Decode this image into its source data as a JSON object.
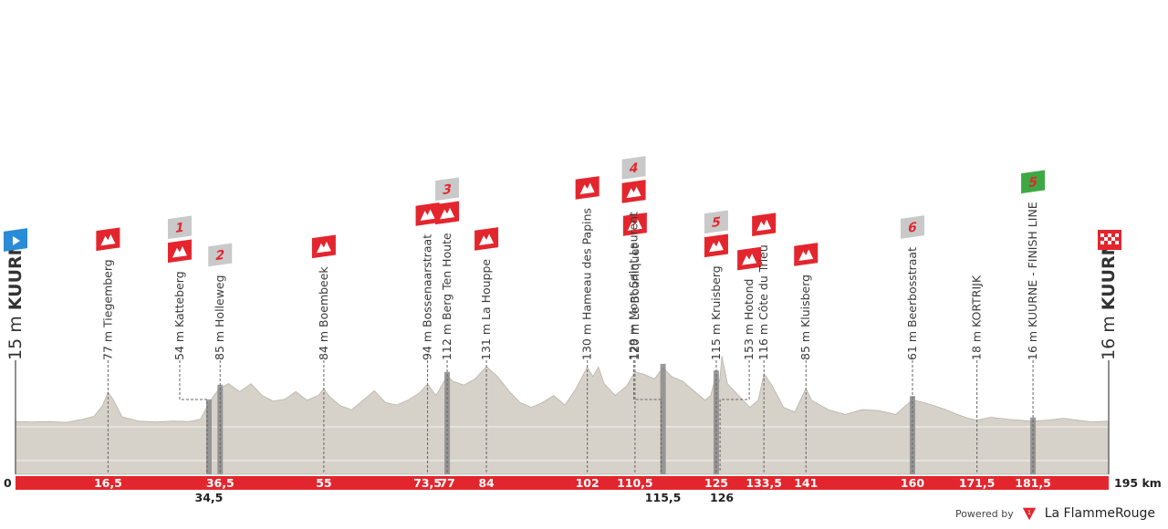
{
  "chart_data": {
    "type": "area",
    "total_km_label": "195 km",
    "xlim": [
      0,
      195
    ],
    "start": {
      "km_label": "0",
      "label": "15 m KUURNE",
      "alt_m": 15
    },
    "finish": {
      "km_label": "195 km",
      "label": "16 m KUURNE",
      "alt_m": 16
    },
    "points": [
      {
        "km": 16.5,
        "km_label": "16,5",
        "label": "77 m Tiegemberg",
        "alt_m": 77,
        "type": "climb",
        "ann_row": "top"
      },
      {
        "km": 34.5,
        "km_label": "34,5",
        "label": "54 m Katteberg",
        "alt_m": 54,
        "type": "climb",
        "cat": "1",
        "ann_row": "below"
      },
      {
        "km": 36.5,
        "km_label": "36,5",
        "label": "85 m Holleweg",
        "alt_m": 85,
        "type": "cobbles",
        "cat": "2",
        "ann_row": "top"
      },
      {
        "km": 55,
        "km_label": "55",
        "label": "84 m Boembeek",
        "alt_m": 84,
        "type": "climb",
        "ann_row": "top"
      },
      {
        "km": 73.5,
        "km_label": "73,5",
        "label": "94 m Bossenaarstraat",
        "alt_m": 94,
        "type": "climb",
        "ann_row": "top"
      },
      {
        "km": 77,
        "km_label": "77",
        "label": "112 m Berg Ten Houte",
        "alt_m": 112,
        "type": "climb",
        "cat": "3",
        "ann_row": "top"
      },
      {
        "km": 84,
        "km_label": "84",
        "label": "131 m La Houppe",
        "alt_m": 131,
        "type": "climb",
        "ann_row": "top"
      },
      {
        "km": 102,
        "km_label": "102",
        "label": "130 m Hameau des Papins",
        "alt_m": 130,
        "type": "climb",
        "ann_row": "top"
      },
      {
        "km": 110.5,
        "km_label": "110,5",
        "label": "120 m Le Bourliquet",
        "alt_m": 120,
        "type": "climb",
        "ann_row": "top"
      },
      {
        "km": 115.5,
        "km_label": "115,5",
        "label": "129 m Mont Saint Laurent",
        "alt_m": 129,
        "type": "climb",
        "cat": "4",
        "ann_row": "below"
      },
      {
        "km": 125,
        "km_label": "125",
        "label": "115 m Kruisberg",
        "alt_m": 115,
        "type": "climb",
        "cat": "5",
        "ann_row": "top"
      },
      {
        "km": 126,
        "km_label": "126",
        "label": "153 m Hotond",
        "alt_m": 153,
        "type": "climb",
        "ann_row": "below"
      },
      {
        "km": 133.5,
        "km_label": "133,5",
        "label": "116 m Côte du Trieu",
        "alt_m": 116,
        "type": "climb",
        "ann_row": "top"
      },
      {
        "km": 141,
        "km_label": "141",
        "label": "85 m Kluisberg",
        "alt_m": 85,
        "type": "climb",
        "ann_row": "top"
      },
      {
        "km": 160,
        "km_label": "160",
        "label": "61 m Beerbosstraat",
        "alt_m": 61,
        "type": "cobbles",
        "cat": "6",
        "ann_row": "top"
      },
      {
        "km": 171.5,
        "km_label": "171,5",
        "label": "18 m KORTRIJK",
        "alt_m": 18,
        "type": "town",
        "ann_row": "top"
      },
      {
        "km": 181.5,
        "km_label": "181,5",
        "label": "16 m KUURNE - FINISH LINE",
        "alt_m": 16,
        "type": "line",
        "cat": "5",
        "ann_row": "top"
      }
    ],
    "profile": [
      [
        0,
        15
      ],
      [
        3,
        14
      ],
      [
        6,
        15
      ],
      [
        9,
        13
      ],
      [
        12,
        20
      ],
      [
        14,
        26
      ],
      [
        15.5,
        48
      ],
      [
        16.5,
        77
      ],
      [
        17.5,
        60
      ],
      [
        19,
        25
      ],
      [
        22,
        16
      ],
      [
        25,
        14
      ],
      [
        28,
        16
      ],
      [
        31,
        15
      ],
      [
        33,
        20
      ],
      [
        34.5,
        54
      ],
      [
        35.5,
        72
      ],
      [
        36.5,
        85
      ],
      [
        38,
        95
      ],
      [
        40,
        78
      ],
      [
        42,
        95
      ],
      [
        44,
        70
      ],
      [
        46,
        58
      ],
      [
        48,
        62
      ],
      [
        50,
        78
      ],
      [
        52,
        60
      ],
      [
        54,
        70
      ],
      [
        55,
        84
      ],
      [
        56,
        68
      ],
      [
        58,
        48
      ],
      [
        60,
        40
      ],
      [
        62,
        60
      ],
      [
        64,
        80
      ],
      [
        66,
        55
      ],
      [
        68,
        50
      ],
      [
        70,
        60
      ],
      [
        72,
        75
      ],
      [
        73.5,
        94
      ],
      [
        75,
        70
      ],
      [
        76,
        90
      ],
      [
        77,
        112
      ],
      [
        78,
        100
      ],
      [
        80,
        92
      ],
      [
        82,
        105
      ],
      [
        84,
        131
      ],
      [
        86,
        110
      ],
      [
        88,
        80
      ],
      [
        90,
        55
      ],
      [
        92,
        45
      ],
      [
        94,
        55
      ],
      [
        96,
        70
      ],
      [
        98,
        50
      ],
      [
        100,
        85
      ],
      [
        102,
        130
      ],
      [
        103,
        110
      ],
      [
        104,
        130
      ],
      [
        105,
        95
      ],
      [
        107,
        70
      ],
      [
        109,
        90
      ],
      [
        110.5,
        120
      ],
      [
        112,
        115
      ],
      [
        114,
        105
      ],
      [
        115.5,
        129
      ],
      [
        117,
        110
      ],
      [
        119,
        100
      ],
      [
        121,
        80
      ],
      [
        123,
        60
      ],
      [
        124,
        70
      ],
      [
        125,
        115
      ],
      [
        125.6,
        98
      ],
      [
        126,
        153
      ],
      [
        127,
        95
      ],
      [
        129,
        70
      ],
      [
        131,
        45
      ],
      [
        132.5,
        60
      ],
      [
        133.5,
        116
      ],
      [
        135,
        90
      ],
      [
        137,
        45
      ],
      [
        139,
        35
      ],
      [
        141,
        85
      ],
      [
        142,
        60
      ],
      [
        145,
        40
      ],
      [
        148,
        30
      ],
      [
        151,
        40
      ],
      [
        154,
        38
      ],
      [
        157,
        30
      ],
      [
        160,
        61
      ],
      [
        162,
        55
      ],
      [
        164,
        48
      ],
      [
        166,
        40
      ],
      [
        168,
        30
      ],
      [
        170,
        22
      ],
      [
        171.5,
        18
      ],
      [
        174,
        24
      ],
      [
        177,
        20
      ],
      [
        180,
        17
      ],
      [
        181.5,
        16
      ],
      [
        184,
        18
      ],
      [
        187,
        22
      ],
      [
        190,
        17
      ],
      [
        192,
        14
      ],
      [
        195,
        16
      ]
    ],
    "colors": {
      "profile_fill": "#d7d2c9",
      "profile_edge": "#b9b3a9",
      "km_bar": "#e3262e",
      "start_flag": "#2a8bd6",
      "finish_flag": "#e3262e",
      "sprint_flag": "#3da944",
      "cat_tag": "#c9c9c9",
      "climb_icon": "#e3262e"
    }
  },
  "footer": {
    "powered_label": "Powered by",
    "brand_label": "La FlammeRouge"
  }
}
